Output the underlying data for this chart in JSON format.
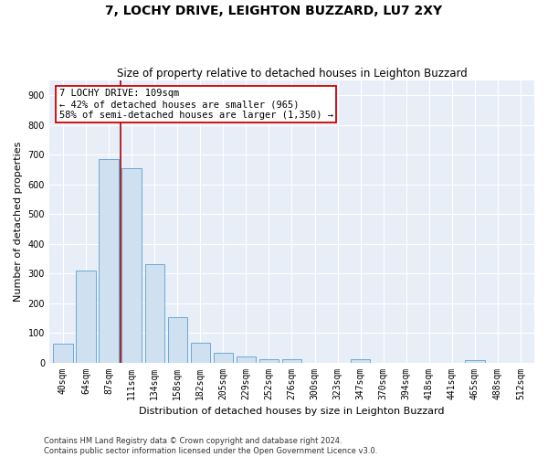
{
  "title": "7, LOCHY DRIVE, LEIGHTON BUZZARD, LU7 2XY",
  "subtitle": "Size of property relative to detached houses in Leighton Buzzard",
  "xlabel": "Distribution of detached houses by size in Leighton Buzzard",
  "ylabel": "Number of detached properties",
  "footnote": "Contains HM Land Registry data © Crown copyright and database right 2024.\nContains public sector information licensed under the Open Government Licence v3.0.",
  "categories": [
    "40sqm",
    "64sqm",
    "87sqm",
    "111sqm",
    "134sqm",
    "158sqm",
    "182sqm",
    "205sqm",
    "229sqm",
    "252sqm",
    "276sqm",
    "300sqm",
    "323sqm",
    "347sqm",
    "370sqm",
    "394sqm",
    "418sqm",
    "441sqm",
    "465sqm",
    "488sqm",
    "512sqm"
  ],
  "values": [
    62,
    310,
    685,
    655,
    330,
    152,
    65,
    32,
    20,
    12,
    12,
    0,
    0,
    10,
    0,
    0,
    0,
    0,
    8,
    0,
    0
  ],
  "bar_color": "#cfe0f0",
  "bar_edge_color": "#6aaad4",
  "marker_label_lines": [
    "7 LOCHY DRIVE: 109sqm",
    "← 42% of detached houses are smaller (965)",
    "58% of semi-detached houses are larger (1,350) →"
  ],
  "marker_line_color": "#aa0000",
  "annotation_box_edge_color": "#cc0000",
  "ylim": [
    0,
    950
  ],
  "yticks": [
    0,
    100,
    200,
    300,
    400,
    500,
    600,
    700,
    800,
    900
  ],
  "fig_bg_color": "#ffffff",
  "plot_bg_color": "#e8eef8",
  "grid_color": "#ffffff",
  "title_fontsize": 10,
  "subtitle_fontsize": 8.5,
  "tick_fontsize": 7,
  "ylabel_fontsize": 8,
  "xlabel_fontsize": 8,
  "footnote_fontsize": 6,
  "annotation_fontsize": 7.5
}
